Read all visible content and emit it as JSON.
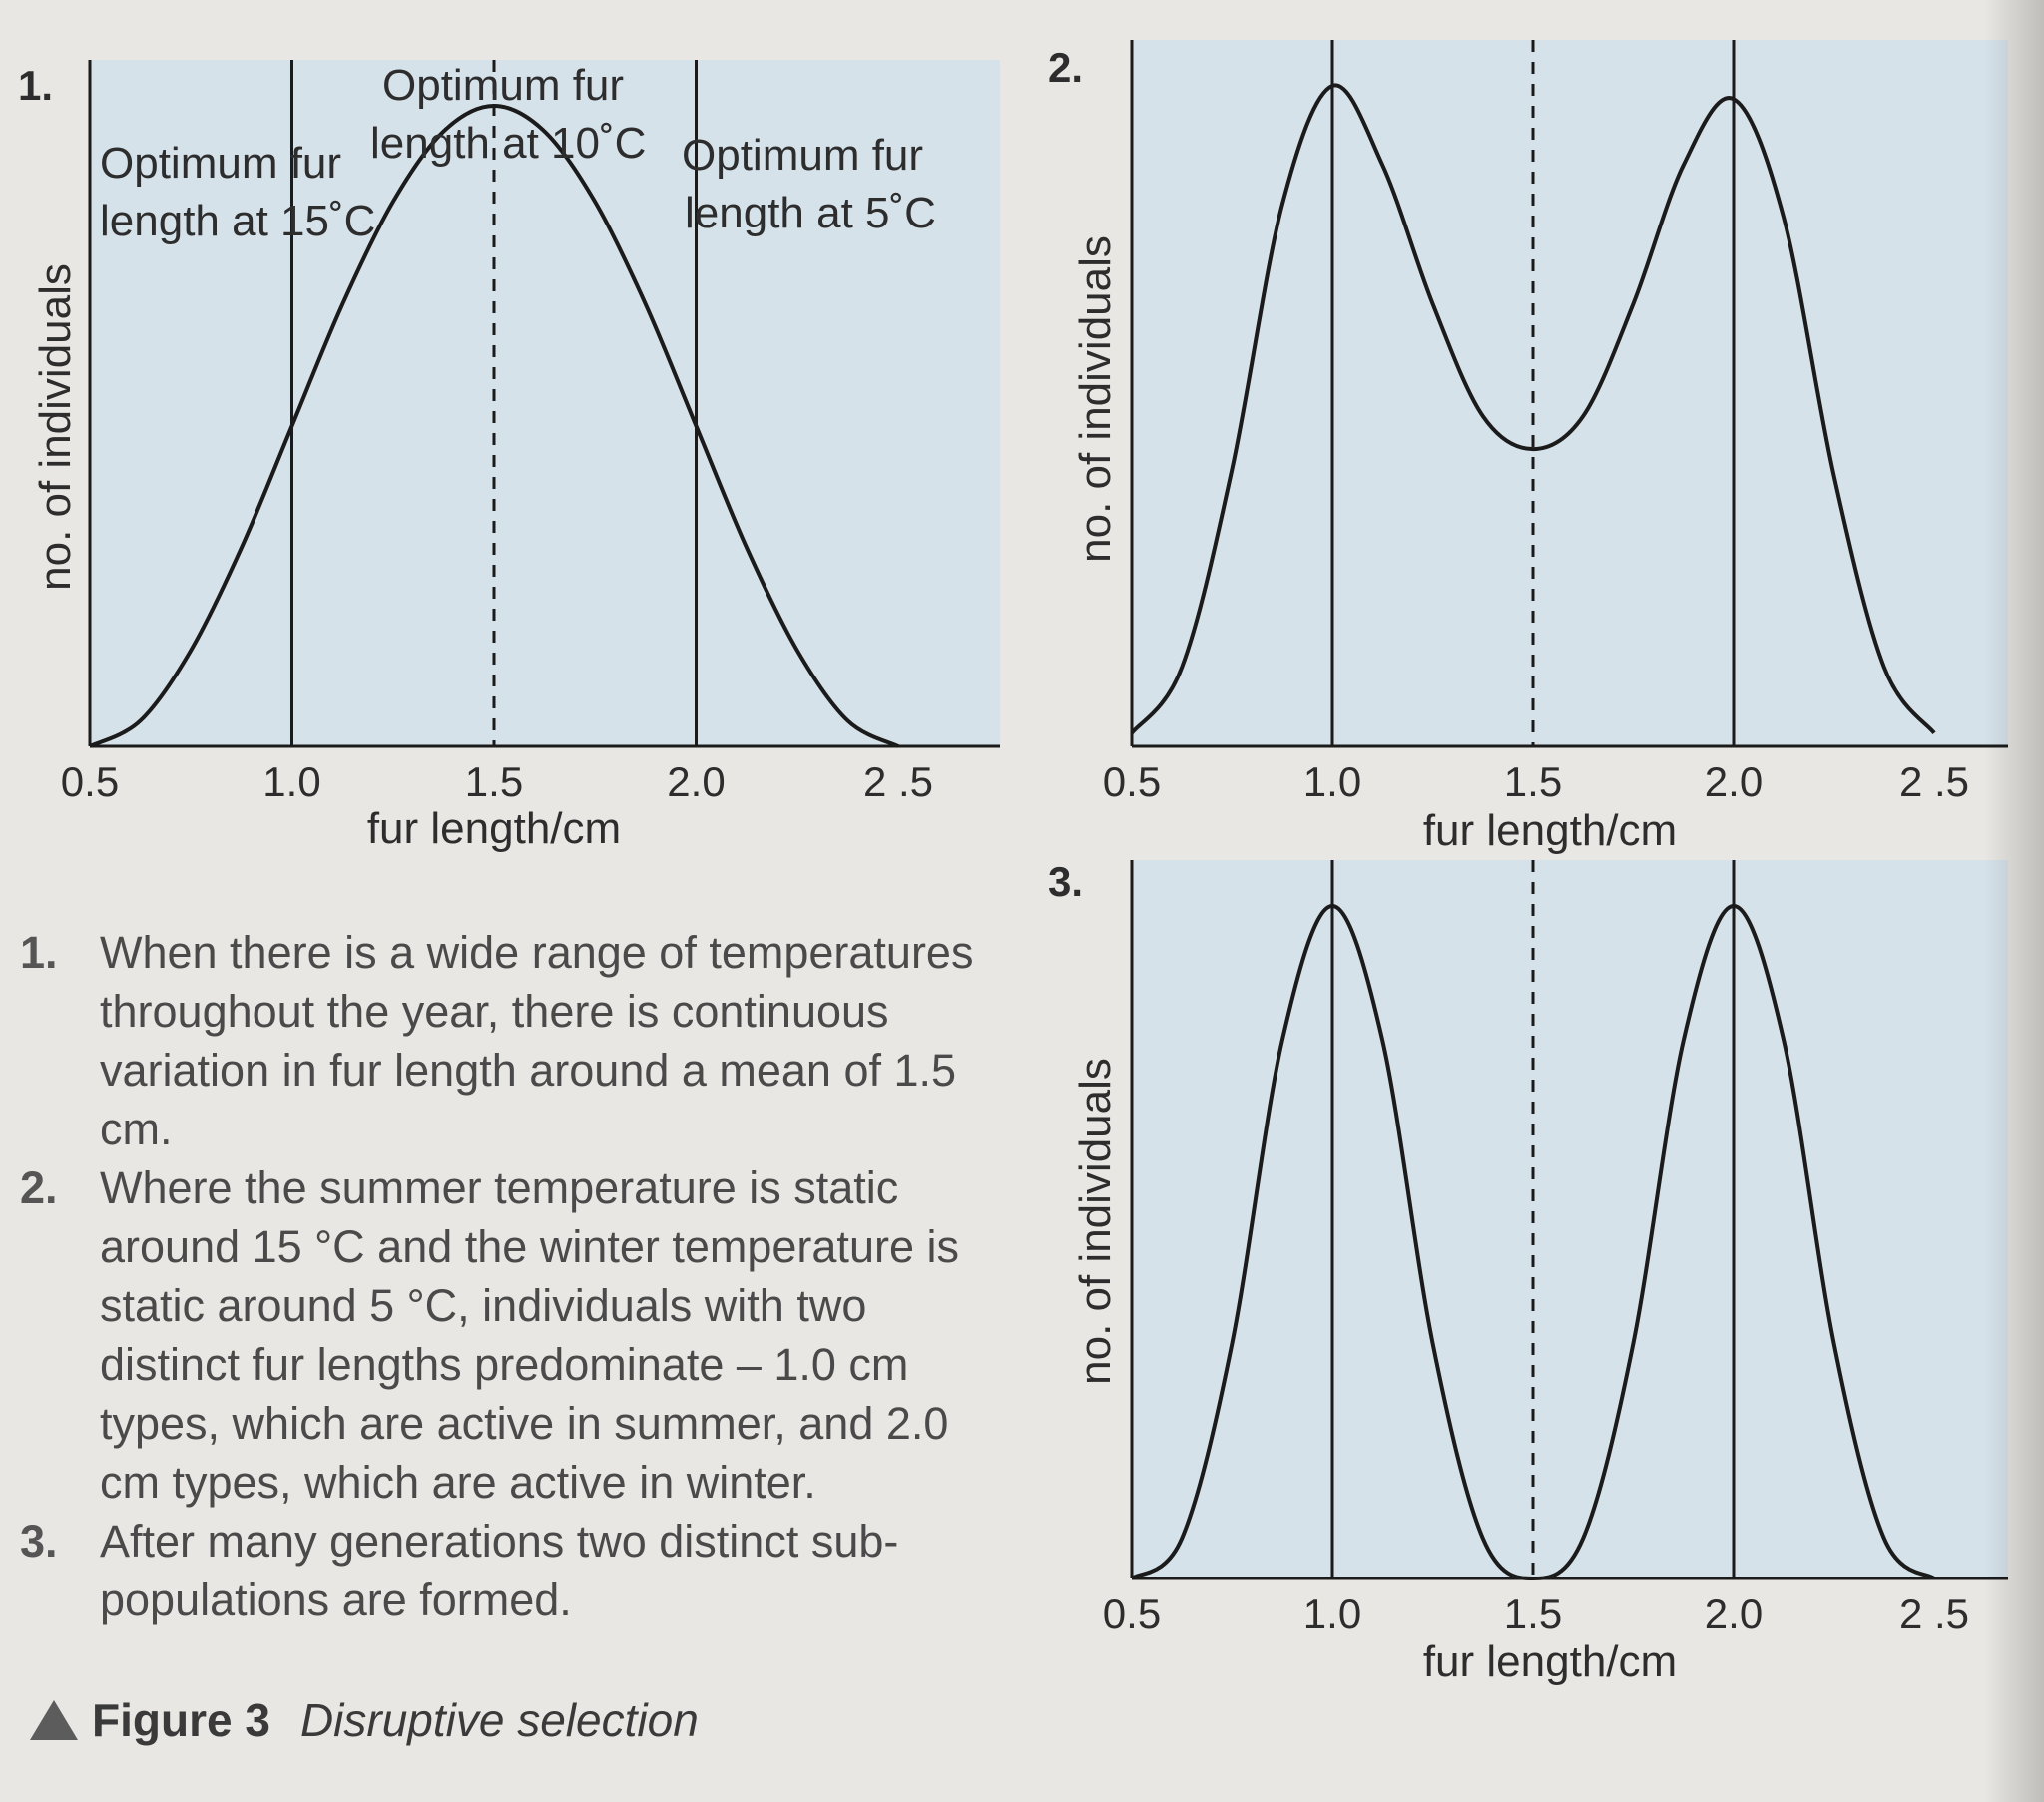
{
  "colors": {
    "panel_fill": "#d6e2ea",
    "curve": "#1b1b1b",
    "page": "#e9e7e3"
  },
  "chart_data": [
    {
      "type": "line",
      "panel_number": "1.",
      "xlabel": "fur length/cm",
      "ylabel": "no. of individuals",
      "ticks": [
        "0.5",
        "1.0",
        "1.5",
        "2.0",
        "2 .5"
      ],
      "xlim": [
        0.5,
        2.5
      ],
      "ylim": [
        0,
        1
      ],
      "grid": false,
      "series": [
        {
          "x": [
            0.5,
            0.625,
            0.75,
            0.875,
            1.0,
            1.125,
            1.25,
            1.375,
            1.5,
            1.625,
            1.75,
            1.875,
            2.0,
            2.125,
            2.25,
            2.375,
            2.5
          ],
          "y": [
            0.0,
            0.04,
            0.15,
            0.31,
            0.5,
            0.69,
            0.85,
            0.96,
            1.0,
            0.96,
            0.85,
            0.69,
            0.5,
            0.31,
            0.15,
            0.04,
            0.0
          ]
        }
      ],
      "vlines": [
        {
          "x": 1.0,
          "style": "solid"
        },
        {
          "x": 1.5,
          "style": "dashed"
        },
        {
          "x": 2.0,
          "style": "solid"
        }
      ],
      "annotations": {
        "opt15_line1": "Optimum fur",
        "opt15_line2": "length at 15˚C",
        "opt10_line1": "Optimum fur",
        "opt10_line2": "length at 10˚C",
        "opt5_line1": "Optimum fur",
        "opt5_line2": "length at 5˚C"
      }
    },
    {
      "type": "line",
      "panel_number": "2.",
      "xlabel": "fur length/cm",
      "ylabel": "no. of individuals",
      "ticks": [
        "0.5",
        "1.0",
        "1.5",
        "2.0",
        "2 .5"
      ],
      "xlim": [
        0.5,
        2.5
      ],
      "ylim": [
        0,
        1
      ],
      "grid": false,
      "series": [
        {
          "x": [
            0.5,
            0.625,
            0.75,
            0.875,
            1.0,
            1.125,
            1.25,
            1.375,
            1.5,
            1.625,
            1.75,
            1.875,
            2.0,
            2.125,
            2.25,
            2.375,
            2.5
          ],
          "y": [
            0.02,
            0.12,
            0.42,
            0.82,
            1.0,
            0.88,
            0.67,
            0.5,
            0.45,
            0.5,
            0.67,
            0.88,
            0.98,
            0.8,
            0.41,
            0.12,
            0.02
          ]
        }
      ],
      "vlines": [
        {
          "x": 1.0,
          "style": "solid"
        },
        {
          "x": 1.5,
          "style": "dashed"
        },
        {
          "x": 2.0,
          "style": "solid"
        }
      ]
    },
    {
      "type": "line",
      "panel_number": "3.",
      "xlabel": "fur length/cm",
      "ylabel": "no. of individuals",
      "ticks": [
        "0.5",
        "1.0",
        "1.5",
        "2.0",
        "2 .5"
      ],
      "xlim": [
        0.5,
        2.5
      ],
      "ylim": [
        0,
        1
      ],
      "grid": false,
      "series": [
        {
          "x": [
            0.5,
            0.625,
            0.75,
            0.875,
            1.0,
            1.125,
            1.25,
            1.375,
            1.5,
            1.625,
            1.75,
            1.875,
            2.0,
            2.125,
            2.25,
            2.375,
            2.5
          ],
          "y": [
            0.0,
            0.06,
            0.35,
            0.8,
            1.0,
            0.8,
            0.35,
            0.06,
            0.0,
            0.06,
            0.35,
            0.8,
            1.0,
            0.8,
            0.35,
            0.06,
            0.0
          ]
        }
      ],
      "vlines": [
        {
          "x": 1.0,
          "style": "solid"
        },
        {
          "x": 1.5,
          "style": "dashed"
        },
        {
          "x": 2.0,
          "style": "solid"
        }
      ]
    }
  ],
  "notes": [
    {
      "num": "1.",
      "text": "When there is a wide range of temperatures throughout the year, there is continuous variation in fur length around a mean of 1.5 cm."
    },
    {
      "num": "2.",
      "text": "Where the summer temperature is static around 15 °C and the winter temperature is static around 5 °C, individuals with two distinct fur lengths predominate – 1.0 cm types, which are active in summer, and 2.0 cm types, which are active in winter."
    },
    {
      "num": "3.",
      "text": "After many generations two distinct sub-populations are formed."
    }
  ],
  "caption": {
    "label": "Figure 3",
    "title": "Disruptive selection"
  }
}
